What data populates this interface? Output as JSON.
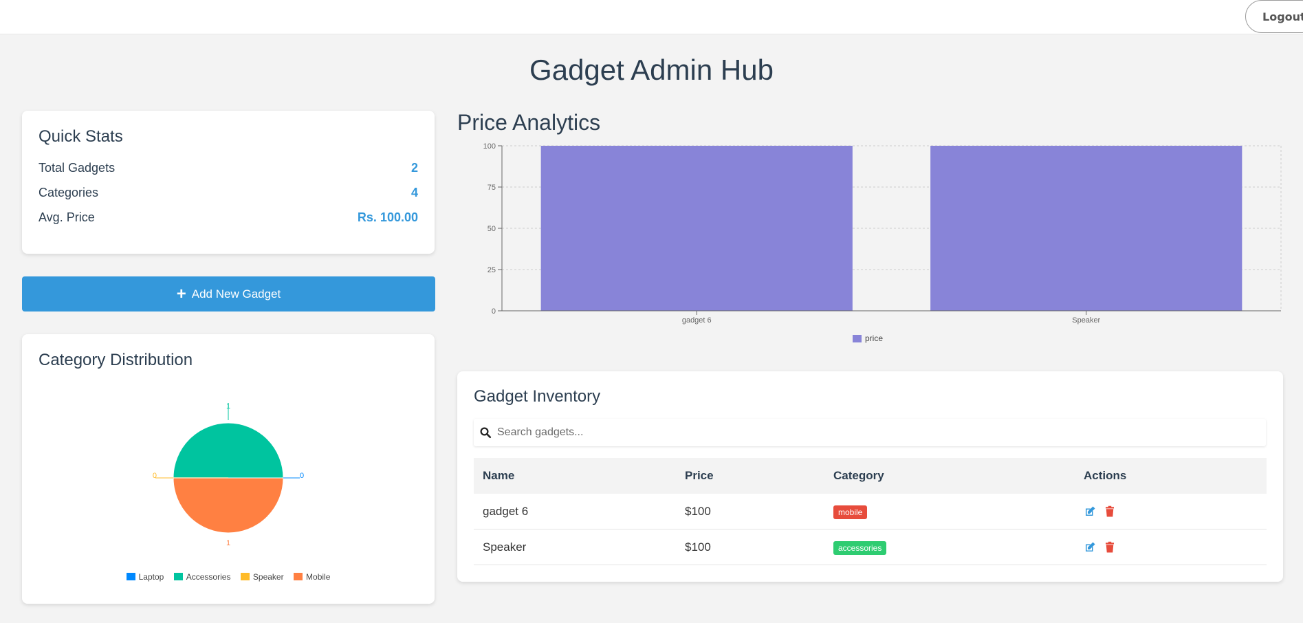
{
  "header": {
    "logout_label": "Logout"
  },
  "page": {
    "title": "Gadget Admin Hub"
  },
  "quick_stats": {
    "title": "Quick Stats",
    "rows": [
      {
        "label": "Total Gadgets",
        "value": "2"
      },
      {
        "label": "Categories",
        "value": "4"
      },
      {
        "label": "Avg. Price",
        "value": "Rs. 100.00"
      }
    ]
  },
  "add_button": {
    "label": "Add New Gadget"
  },
  "category_distribution": {
    "title": "Category Distribution",
    "slice_labels": {
      "top": "1",
      "bottom": "1",
      "left": "0",
      "right": "0"
    },
    "legend": [
      {
        "name": "Laptop",
        "color": "#0088fe"
      },
      {
        "name": "Accessories",
        "color": "#00c49f"
      },
      {
        "name": "Speaker",
        "color": "#ffbb28"
      },
      {
        "name": "Mobile",
        "color": "#ff8042"
      }
    ]
  },
  "price_analytics": {
    "title": "Price Analytics"
  },
  "chart_data": [
    {
      "type": "bar",
      "title": "",
      "categories": [
        "gadget 6",
        "Speaker"
      ],
      "series": [
        {
          "name": "price",
          "values": [
            100,
            100
          ],
          "color": "#8884d8"
        }
      ],
      "yticks": [
        "0",
        "25",
        "50",
        "75",
        "100"
      ],
      "ylim": [
        0,
        100
      ],
      "grid": true,
      "legend": "bottom-center"
    },
    {
      "type": "pie",
      "categories": [
        "Laptop",
        "Accessories",
        "Speaker",
        "Mobile"
      ],
      "values": [
        0,
        1,
        0,
        1
      ],
      "colors": [
        "#0088fe",
        "#00c49f",
        "#ffbb28",
        "#ff8042"
      ],
      "legend": "bottom-center"
    }
  ],
  "inventory": {
    "title": "Gadget Inventory",
    "search_placeholder": "Search gadgets...",
    "columns": [
      "Name",
      "Price",
      "Category",
      "Actions"
    ],
    "rows": [
      {
        "name": "gadget 6",
        "price": "$100",
        "category": "mobile",
        "badge_color": "#e74c3c"
      },
      {
        "name": "Speaker",
        "price": "$100",
        "category": "accessories",
        "badge_color": "#2ecc71"
      }
    ],
    "icons": {
      "edit": "edit-icon",
      "delete": "trash-icon",
      "search": "search-icon"
    }
  }
}
